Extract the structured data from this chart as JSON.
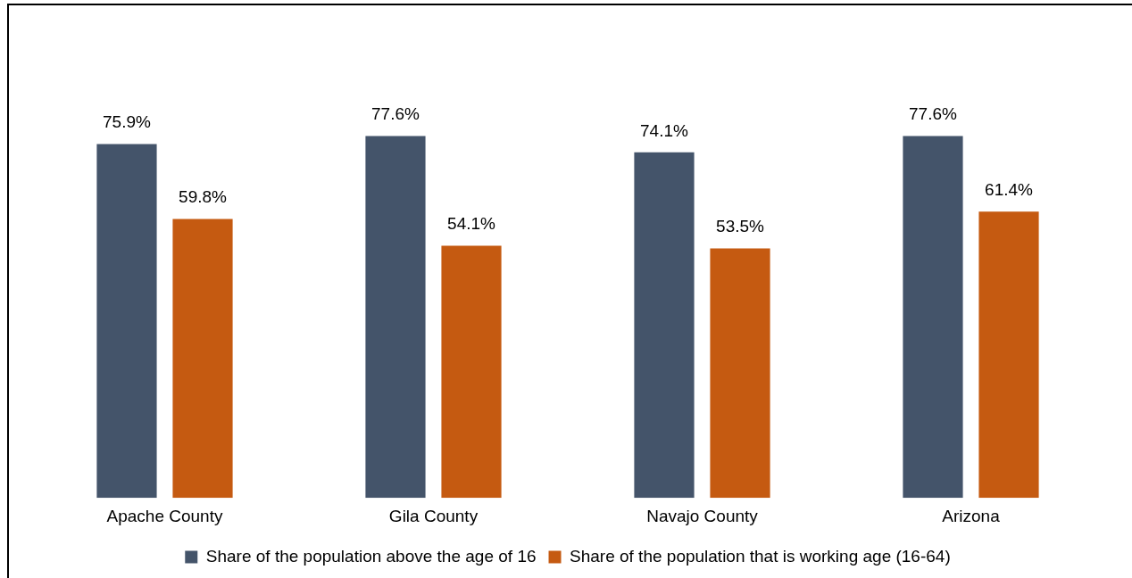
{
  "chart_data": {
    "type": "bar",
    "categories": [
      "Apache County",
      "Gila County",
      "Navajo County",
      "Arizona"
    ],
    "series": [
      {
        "name": "Share of the population above the age of 16",
        "color": "#44546a",
        "values": [
          75.9,
          77.6,
          74.1,
          77.6
        ],
        "value_labels": [
          "75.9%",
          "77.6%",
          "74.1%",
          "77.6%"
        ]
      },
      {
        "name": "Share of the population that is working age (16-64)",
        "color": "#c55a11",
        "values": [
          59.8,
          54.1,
          53.5,
          61.4
        ],
        "value_labels": [
          "59.8%",
          "54.1%",
          "53.5%",
          "61.4%"
        ]
      }
    ],
    "tick_labels": "x",
    "grid": false,
    "legend": "bottom"
  }
}
